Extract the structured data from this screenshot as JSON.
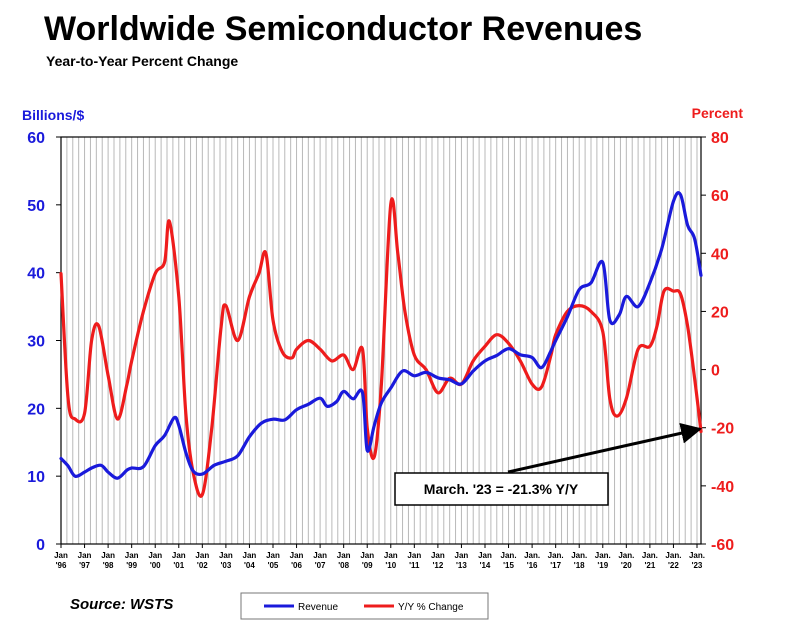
{
  "chart_data": {
    "type": "line",
    "title": "Worldwide Semiconductor Revenues",
    "subtitle": "Year-to-Year Percent Change",
    "ylabel_left": "Billions/$",
    "ylabel_right": "Percent",
    "ylim_left": [
      0,
      60
    ],
    "ylim_right": [
      -60,
      80
    ],
    "yticks_left": [
      "0",
      "10",
      "20",
      "30",
      "40",
      "50",
      "60"
    ],
    "yticks_right": [
      "-60",
      "-40",
      "-20",
      "0",
      "20",
      "40",
      "60",
      "80"
    ],
    "x_range": [
      1996.0,
      2023.17
    ],
    "xticks": [
      {
        "top": "Jan",
        "bottom": "'96"
      },
      {
        "top": "Jan",
        "bottom": "'97"
      },
      {
        "top": "Jan",
        "bottom": "'98"
      },
      {
        "top": "Jan",
        "bottom": "'99"
      },
      {
        "top": "Jan",
        "bottom": "'00"
      },
      {
        "top": "Jan",
        "bottom": "'01"
      },
      {
        "top": "Jan",
        "bottom": "'02"
      },
      {
        "top": "Jan",
        "bottom": "'03"
      },
      {
        "top": "Jan",
        "bottom": "'04"
      },
      {
        "top": "Jan",
        "bottom": "'05"
      },
      {
        "top": "Jan",
        "bottom": "'06"
      },
      {
        "top": "Jan",
        "bottom": "'07"
      },
      {
        "top": "Jan",
        "bottom": "'08"
      },
      {
        "top": "Jan",
        "bottom": "'09"
      },
      {
        "top": "Jan",
        "bottom": "'10"
      },
      {
        "top": "Jan",
        "bottom": "'11"
      },
      {
        "top": "Jan",
        "bottom": "'12"
      },
      {
        "top": "Jan",
        "bottom": "'13"
      },
      {
        "top": "Jan",
        "bottom": "'14"
      },
      {
        "top": "Jan.",
        "bottom": "'15"
      },
      {
        "top": "Jan.",
        "bottom": "'16"
      },
      {
        "top": "Jan.",
        "bottom": "'17"
      },
      {
        "top": "Jan.",
        "bottom": "'18"
      },
      {
        "top": "Jan.",
        "bottom": "'19"
      },
      {
        "top": "Jan.",
        "bottom": "'20"
      },
      {
        "top": "Jan.",
        "bottom": "'21"
      },
      {
        "top": "Jan.",
        "bottom": "'22"
      },
      {
        "top": "Jan.",
        "bottom": "'23"
      }
    ],
    "series": [
      {
        "name": "Revenue",
        "axis": "left",
        "color": "#1a1adb",
        "points": [
          [
            1996.0,
            12.6
          ],
          [
            1996.3,
            11.5
          ],
          [
            1996.6,
            10.0
          ],
          [
            1997.0,
            10.6
          ],
          [
            1997.3,
            11.2
          ],
          [
            1997.7,
            11.6
          ],
          [
            1998.0,
            10.6
          ],
          [
            1998.4,
            9.7
          ],
          [
            1998.8,
            10.9
          ],
          [
            1999.0,
            11.2
          ],
          [
            1999.5,
            11.4
          ],
          [
            2000.0,
            14.5
          ],
          [
            2000.4,
            16.0
          ],
          [
            2000.8,
            18.6
          ],
          [
            2001.0,
            17.5
          ],
          [
            2001.3,
            13.5
          ],
          [
            2001.6,
            10.8
          ],
          [
            2002.0,
            10.3
          ],
          [
            2002.5,
            11.6
          ],
          [
            2003.0,
            12.2
          ],
          [
            2003.5,
            13.0
          ],
          [
            2004.0,
            15.8
          ],
          [
            2004.5,
            17.8
          ],
          [
            2005.0,
            18.4
          ],
          [
            2005.5,
            18.3
          ],
          [
            2006.0,
            19.8
          ],
          [
            2006.5,
            20.6
          ],
          [
            2007.0,
            21.5
          ],
          [
            2007.3,
            20.3
          ],
          [
            2007.7,
            21.0
          ],
          [
            2008.0,
            22.5
          ],
          [
            2008.4,
            21.4
          ],
          [
            2008.8,
            22.3
          ],
          [
            2009.0,
            13.8
          ],
          [
            2009.3,
            17.5
          ],
          [
            2009.6,
            20.8
          ],
          [
            2010.0,
            23.0
          ],
          [
            2010.5,
            25.5
          ],
          [
            2011.0,
            24.8
          ],
          [
            2011.5,
            25.3
          ],
          [
            2012.0,
            24.5
          ],
          [
            2012.5,
            24.2
          ],
          [
            2013.0,
            23.6
          ],
          [
            2013.5,
            25.5
          ],
          [
            2014.0,
            27.0
          ],
          [
            2014.5,
            27.8
          ],
          [
            2015.0,
            28.8
          ],
          [
            2015.5,
            27.9
          ],
          [
            2016.0,
            27.5
          ],
          [
            2016.4,
            26.0
          ],
          [
            2016.8,
            28.5
          ],
          [
            2017.0,
            30.0
          ],
          [
            2017.5,
            33.5
          ],
          [
            2018.0,
            37.5
          ],
          [
            2018.5,
            38.5
          ],
          [
            2019.0,
            41.5
          ],
          [
            2019.3,
            33.0
          ],
          [
            2019.7,
            33.8
          ],
          [
            2020.0,
            36.5
          ],
          [
            2020.5,
            35.0
          ],
          [
            2021.0,
            38.5
          ],
          [
            2021.5,
            43.5
          ],
          [
            2022.0,
            50.5
          ],
          [
            2022.3,
            51.5
          ],
          [
            2022.6,
            47.0
          ],
          [
            2022.9,
            45.0
          ],
          [
            2023.17,
            39.6
          ]
        ]
      },
      {
        "name": "Y/Y % Change",
        "axis": "right",
        "color": "#ee1c1c",
        "points": [
          [
            1996.0,
            33.0
          ],
          [
            1996.3,
            -10.0
          ],
          [
            1996.6,
            -17.0
          ],
          [
            1997.0,
            -15.0
          ],
          [
            1997.3,
            10.0
          ],
          [
            1997.6,
            15.0
          ],
          [
            1998.0,
            -2.0
          ],
          [
            1998.4,
            -17.0
          ],
          [
            1998.8,
            -5.0
          ],
          [
            1999.0,
            3.0
          ],
          [
            1999.5,
            20.0
          ],
          [
            2000.0,
            33.0
          ],
          [
            2000.4,
            37.0
          ],
          [
            2000.6,
            51.0
          ],
          [
            2001.0,
            25.0
          ],
          [
            2001.3,
            -15.0
          ],
          [
            2001.6,
            -35.0
          ],
          [
            2002.0,
            -43.0
          ],
          [
            2002.4,
            -20.0
          ],
          [
            2002.8,
            15.0
          ],
          [
            2003.0,
            22.0
          ],
          [
            2003.5,
            10.0
          ],
          [
            2004.0,
            25.0
          ],
          [
            2004.4,
            33.0
          ],
          [
            2004.7,
            40.0
          ],
          [
            2005.0,
            17.0
          ],
          [
            2005.4,
            6.0
          ],
          [
            2005.8,
            4.0
          ],
          [
            2006.0,
            7.0
          ],
          [
            2006.5,
            10.0
          ],
          [
            2007.0,
            7.0
          ],
          [
            2007.5,
            3.0
          ],
          [
            2008.0,
            5.0
          ],
          [
            2008.4,
            0.0
          ],
          [
            2008.8,
            7.0
          ],
          [
            2009.0,
            -20.0
          ],
          [
            2009.3,
            -30.0
          ],
          [
            2009.6,
            -5.0
          ],
          [
            2010.0,
            57.0
          ],
          [
            2010.3,
            40.0
          ],
          [
            2010.6,
            20.0
          ],
          [
            2011.0,
            5.0
          ],
          [
            2011.5,
            0.0
          ],
          [
            2012.0,
            -8.0
          ],
          [
            2012.5,
            -3.0
          ],
          [
            2013.0,
            -5.0
          ],
          [
            2013.5,
            3.0
          ],
          [
            2014.0,
            8.0
          ],
          [
            2014.5,
            12.0
          ],
          [
            2015.0,
            9.0
          ],
          [
            2015.5,
            3.0
          ],
          [
            2016.0,
            -5.0
          ],
          [
            2016.4,
            -6.0
          ],
          [
            2016.8,
            5.0
          ],
          [
            2017.0,
            12.0
          ],
          [
            2017.5,
            20.0
          ],
          [
            2018.0,
            22.0
          ],
          [
            2018.5,
            20.0
          ],
          [
            2019.0,
            13.0
          ],
          [
            2019.3,
            -10.0
          ],
          [
            2019.6,
            -16.0
          ],
          [
            2020.0,
            -10.0
          ],
          [
            2020.5,
            7.0
          ],
          [
            2021.0,
            8.0
          ],
          [
            2021.3,
            15.0
          ],
          [
            2021.6,
            27.0
          ],
          [
            2022.0,
            27.0
          ],
          [
            2022.3,
            26.0
          ],
          [
            2022.6,
            15.0
          ],
          [
            2022.9,
            -3.0
          ],
          [
            2023.17,
            -21.3
          ]
        ]
      }
    ],
    "annotation": {
      "text": "March. '23 = -21.3% Y/Y",
      "target": [
        2023.17,
        -21.3
      ]
    },
    "legend": {
      "position": "bottom-center",
      "entries": [
        "Revenue",
        "Y/Y % Change"
      ]
    },
    "source": "Source: WSTS",
    "colors": {
      "left_axis": "#1a1adb",
      "right_axis": "#ee1c1c",
      "grid": "#b8b8b8",
      "border": "#000000"
    }
  }
}
